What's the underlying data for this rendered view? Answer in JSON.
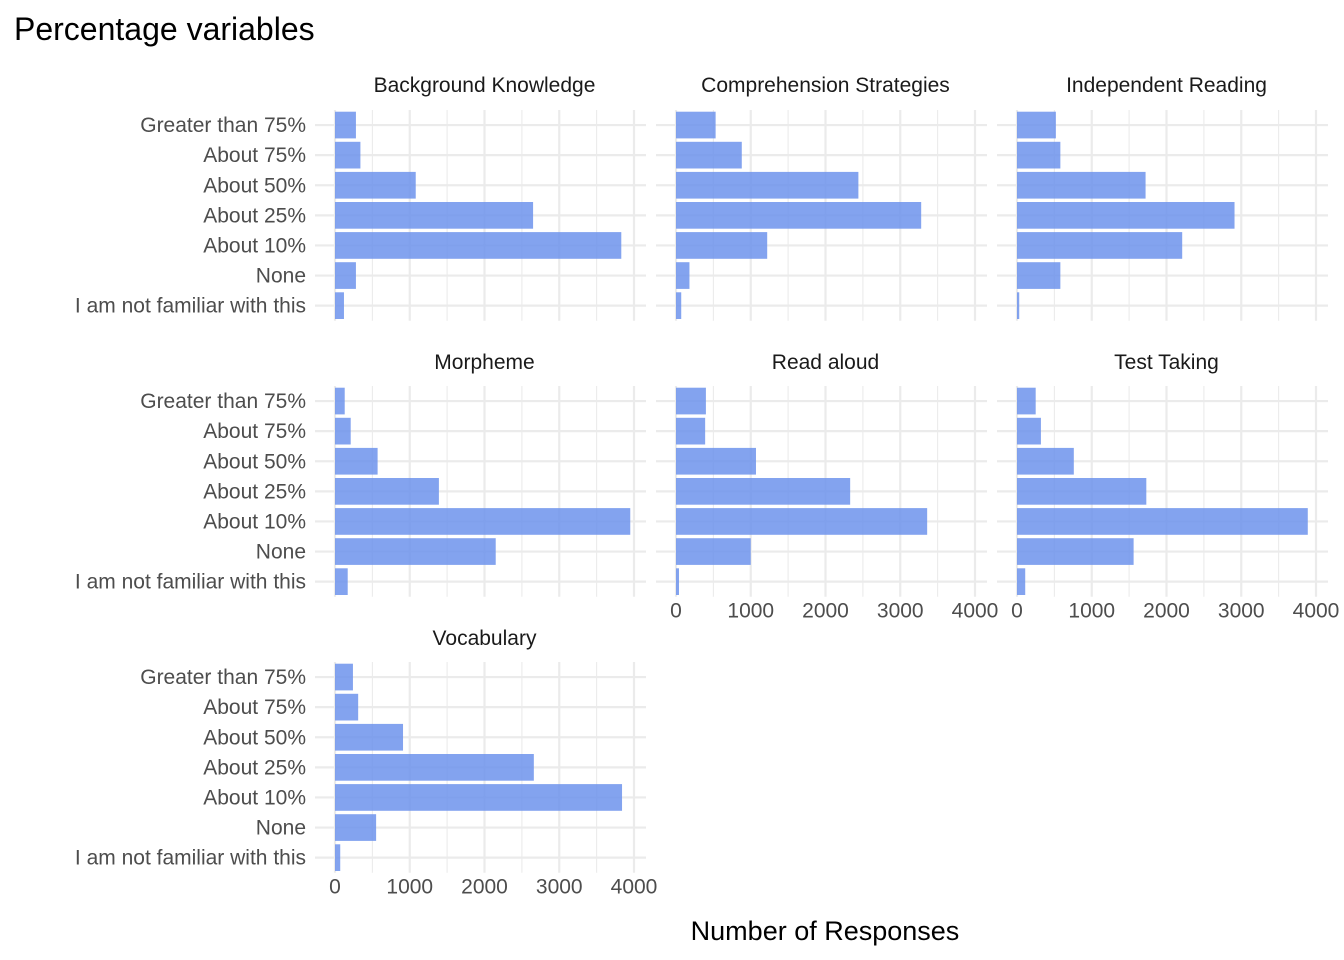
{
  "chart_data": {
    "type": "bar",
    "orientation": "horizontal",
    "title": "Percentage variables",
    "xlabel": "Number of Responses",
    "ylabel": "",
    "xlim": [
      0,
      4000
    ],
    "x_ticks": [
      "0",
      "1000",
      "2000",
      "3000",
      "4000"
    ],
    "grid": true,
    "legend": "none",
    "bar_color": "#6d93ec",
    "categories": [
      "Greater than 75%",
      "About 75%",
      "About 50%",
      "About 25%",
      "About 10%",
      "None",
      "I am not familiar with this"
    ],
    "facets": [
      {
        "name": "Background Knowledge",
        "values": [
          280,
          340,
          1080,
          2650,
          3830,
          280,
          120
        ]
      },
      {
        "name": "Comprehension Strategies",
        "values": [
          530,
          880,
          2440,
          3280,
          1220,
          180,
          70
        ]
      },
      {
        "name": "Independent Reading",
        "values": [
          520,
          580,
          1720,
          2910,
          2210,
          580,
          30
        ]
      },
      {
        "name": "Morpheme",
        "values": [
          130,
          210,
          570,
          1390,
          3950,
          2150,
          170
        ]
      },
      {
        "name": "Read aloud",
        "values": [
          400,
          390,
          1070,
          2330,
          3360,
          1000,
          40
        ]
      },
      {
        "name": "Test Taking",
        "values": [
          250,
          320,
          760,
          1730,
          3890,
          1560,
          110
        ]
      },
      {
        "name": "Vocabulary",
        "values": [
          240,
          310,
          910,
          2660,
          3840,
          550,
          70
        ]
      }
    ]
  }
}
